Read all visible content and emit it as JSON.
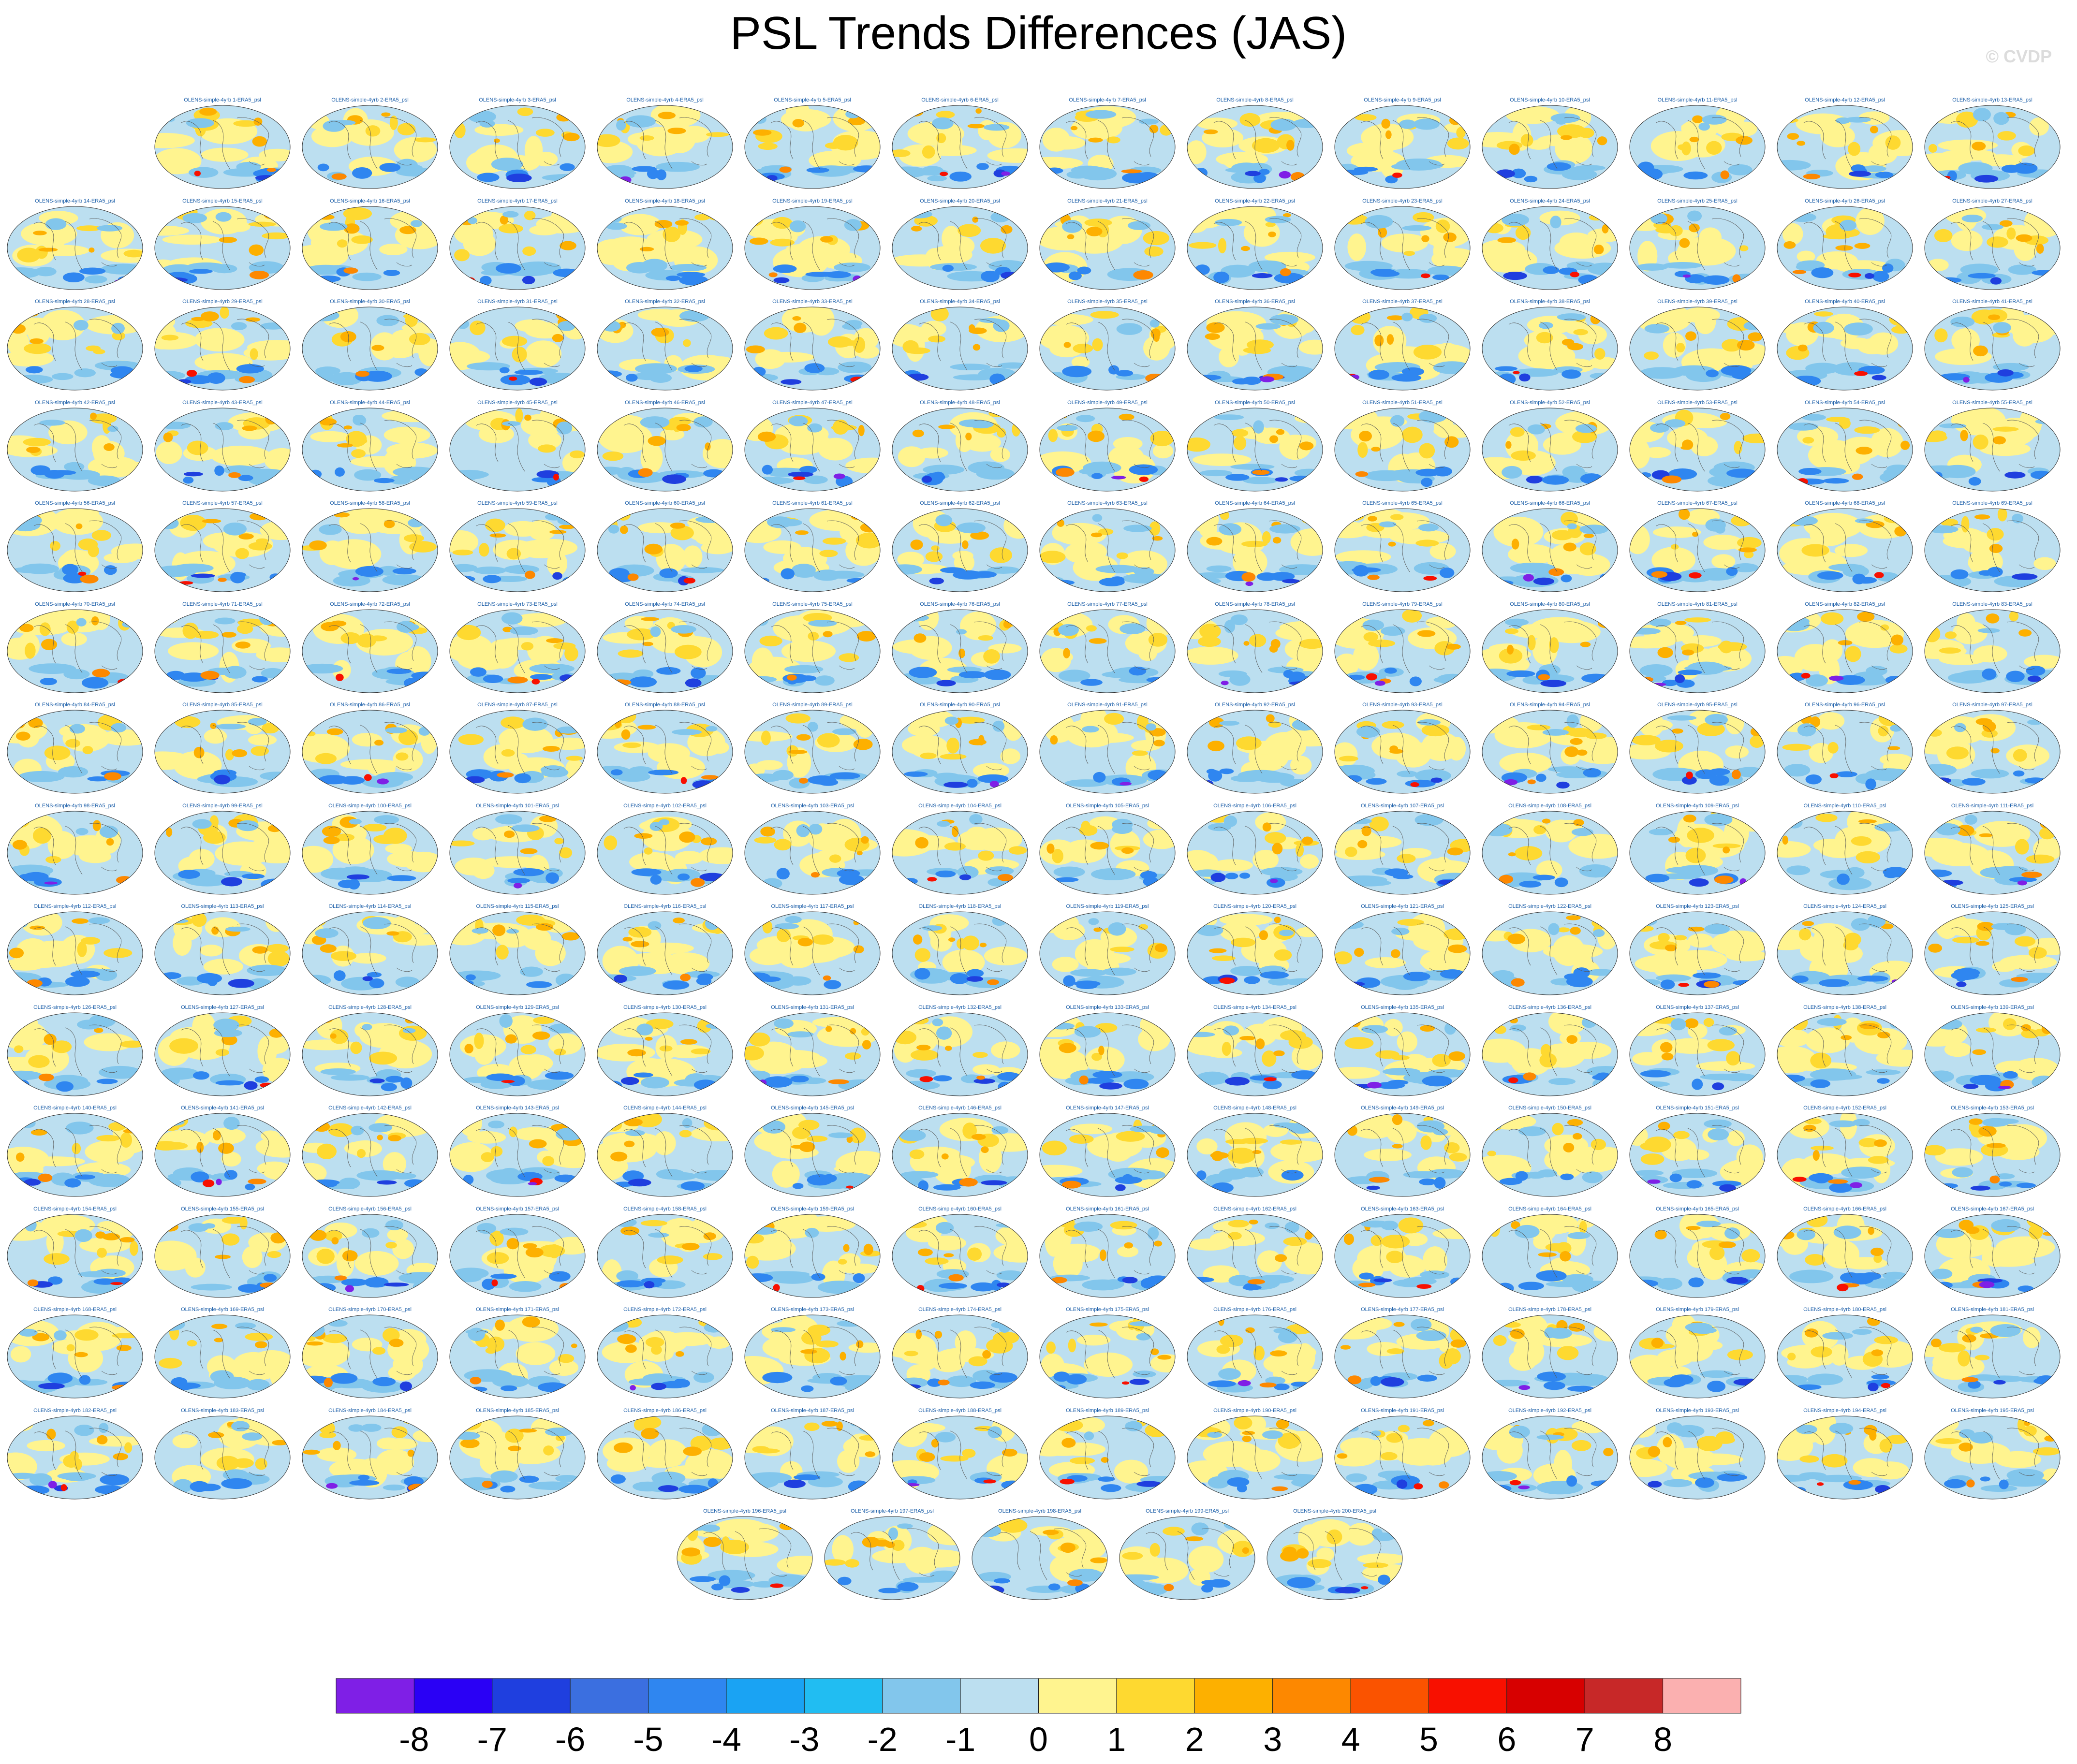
{
  "title": "PSL Trends Differences (JAS)",
  "credit": "© CVDP",
  "chart_data": {
    "type": "heatmap",
    "title": "PSL Trends Differences (JAS)",
    "panel_count": 200,
    "panel_label_template": "OLENS-simple-4yrb {n}-ERA5_psl",
    "panel_labels": [
      "OLENS-simple-4yrb 1-ERA5_psl",
      "OLENS-simple-4yrb 2-ERA5_psl",
      "OLENS-simple-4yrb 3-ERA5_psl",
      "OLENS-simple-4yrb 4-ERA5_psl",
      "OLENS-simple-4yrb 5-ERA5_psl",
      "OLENS-simple-4yrb 6-ERA5_psl",
      "OLENS-simple-4yrb 7-ERA5_psl",
      "OLENS-simple-4yrb 8-ERA5_psl",
      "OLENS-simple-4yrb 9-ERA5_psl",
      "OLENS-simple-4yrb 10-ERA5_psl",
      "OLENS-simple-4yrb 11-ERA5_psl",
      "OLENS-simple-4yrb 12-ERA5_psl",
      "OLENS-simple-4yrb 13-ERA5_psl",
      "OLENS-simple-4yrb 14-ERA5_psl",
      "OLENS-simple-4yrb 15-ERA5_psl",
      "OLENS-simple-4yrb 16-ERA5_psl",
      "OLENS-simple-4yrb 17-ERA5_psl",
      "OLENS-simple-4yrb 18-ERA5_psl",
      "OLENS-simple-4yrb 19-ERA5_psl",
      "OLENS-simple-4yrb 20-ERA5_psl",
      "OLENS-simple-4yrb 21-ERA5_psl",
      "OLENS-simple-4yrb 22-ERA5_psl",
      "OLENS-simple-4yrb 23-ERA5_psl",
      "OLENS-simple-4yrb 24-ERA5_psl",
      "OLENS-simple-4yrb 25-ERA5_psl",
      "OLENS-simple-4yrb 26-ERA5_psl",
      "OLENS-simple-4yrb 27-ERA5_psl",
      "OLENS-simple-4yrb 28-ERA5_psl",
      "OLENS-simple-4yrb 29-ERA5_psl",
      "OLENS-simple-4yrb 30-ERA5_psl",
      "OLENS-simple-4yrb 31-ERA5_psl",
      "OLENS-simple-4yrb 32-ERA5_psl",
      "OLENS-simple-4yrb 33-ERA5_psl",
      "OLENS-simple-4yrb 34-ERA5_psl",
      "OLENS-simple-4yrb 35-ERA5_psl",
      "OLENS-simple-4yrb 36-ERA5_psl",
      "OLENS-simple-4yrb 37-ERA5_psl",
      "OLENS-simple-4yrb 38-ERA5_psl",
      "OLENS-simple-4yrb 39-ERA5_psl",
      "OLENS-simple-4yrb 40-ERA5_psl",
      "OLENS-simple-4yrb 41-ERA5_psl",
      "OLENS-simple-4yrb 42-ERA5_psl",
      "OLENS-simple-4yrb 43-ERA5_psl",
      "OLENS-simple-4yrb 44-ERA5_psl",
      "OLENS-simple-4yrb 45-ERA5_psl",
      "OLENS-simple-4yrb 46-ERA5_psl",
      "OLENS-simple-4yrb 47-ERA5_psl",
      "OLENS-simple-4yrb 48-ERA5_psl",
      "OLENS-simple-4yrb 49-ERA5_psl",
      "OLENS-simple-4yrb 50-ERA5_psl",
      "OLENS-simple-4yrb 51-ERA5_psl",
      "OLENS-simple-4yrb 52-ERA5_psl",
      "OLENS-simple-4yrb 53-ERA5_psl",
      "OLENS-simple-4yrb 54-ERA5_psl",
      "OLENS-simple-4yrb 55-ERA5_psl",
      "OLENS-simple-4yrb 56-ERA5_psl",
      "OLENS-simple-4yrb 57-ERA5_psl",
      "OLENS-simple-4yrb 58-ERA5_psl",
      "OLENS-simple-4yrb 59-ERA5_psl",
      "OLENS-simple-4yrb 60-ERA5_psl",
      "OLENS-simple-4yrb 61-ERA5_psl",
      "OLENS-simple-4yrb 62-ERA5_psl",
      "OLENS-simple-4yrb 63-ERA5_psl",
      "OLENS-simple-4yrb 64-ERA5_psl",
      "OLENS-simple-4yrb 65-ERA5_psl",
      "OLENS-simple-4yrb 66-ERA5_psl",
      "OLENS-simple-4yrb 67-ERA5_psl",
      "OLENS-simple-4yrb 68-ERA5_psl",
      "OLENS-simple-4yrb 69-ERA5_psl",
      "OLENS-simple-4yrb 70-ERA5_psl",
      "OLENS-simple-4yrb 71-ERA5_psl",
      "OLENS-simple-4yrb 72-ERA5_psl",
      "OLENS-simple-4yrb 73-ERA5_psl",
      "OLENS-simple-4yrb 74-ERA5_psl",
      "OLENS-simple-4yrb 75-ERA5_psl",
      "OLENS-simple-4yrb 76-ERA5_psl",
      "OLENS-simple-4yrb 77-ERA5_psl",
      "OLENS-simple-4yrb 78-ERA5_psl",
      "OLENS-simple-4yrb 79-ERA5_psl",
      "OLENS-simple-4yrb 80-ERA5_psl",
      "OLENS-simple-4yrb 81-ERA5_psl",
      "OLENS-simple-4yrb 82-ERA5_psl",
      "OLENS-simple-4yrb 83-ERA5_psl",
      "OLENS-simple-4yrb 84-ERA5_psl",
      "OLENS-simple-4yrb 85-ERA5_psl",
      "OLENS-simple-4yrb 86-ERA5_psl",
      "OLENS-simple-4yrb 87-ERA5_psl",
      "OLENS-simple-4yrb 88-ERA5_psl",
      "OLENS-simple-4yrb 89-ERA5_psl",
      "OLENS-simple-4yrb 90-ERA5_psl",
      "OLENS-simple-4yrb 91-ERA5_psl",
      "OLENS-simple-4yrb 92-ERA5_psl",
      "OLENS-simple-4yrb 93-ERA5_psl",
      "OLENS-simple-4yrb 94-ERA5_psl",
      "OLENS-simple-4yrb 95-ERA5_psl",
      "OLENS-simple-4yrb 96-ERA5_psl",
      "OLENS-simple-4yrb 97-ERA5_psl",
      "OLENS-simple-4yrb 98-ERA5_psl",
      "OLENS-simple-4yrb 99-ERA5_psl",
      "OLENS-simple-4yrb 100-ERA5_psl",
      "OLENS-simple-4yrb 101-ERA5_psl",
      "OLENS-simple-4yrb 102-ERA5_psl",
      "OLENS-simple-4yrb 103-ERA5_psl",
      "OLENS-simple-4yrb 104-ERA5_psl",
      "OLENS-simple-4yrb 105-ERA5_psl",
      "OLENS-simple-4yrb 106-ERA5_psl",
      "OLENS-simple-4yrb 107-ERA5_psl",
      "OLENS-simple-4yrb 108-ERA5_psl",
      "OLENS-simple-4yrb 109-ERA5_psl",
      "OLENS-simple-4yrb 110-ERA5_psl",
      "OLENS-simple-4yrb 111-ERA5_psl",
      "OLENS-simple-4yrb 112-ERA5_psl",
      "OLENS-simple-4yrb 113-ERA5_psl",
      "OLENS-simple-4yrb 114-ERA5_psl",
      "OLENS-simple-4yrb 115-ERA5_psl",
      "OLENS-simple-4yrb 116-ERA5_psl",
      "OLENS-simple-4yrb 117-ERA5_psl",
      "OLENS-simple-4yrb 118-ERA5_psl",
      "OLENS-simple-4yrb 119-ERA5_psl",
      "OLENS-simple-4yrb 120-ERA5_psl",
      "OLENS-simple-4yrb 121-ERA5_psl",
      "OLENS-simple-4yrb 122-ERA5_psl",
      "OLENS-simple-4yrb 123-ERA5_psl",
      "OLENS-simple-4yrb 124-ERA5_psl",
      "OLENS-simple-4yrb 125-ERA5_psl",
      "OLENS-simple-4yrb 126-ERA5_psl",
      "OLENS-simple-4yrb 127-ERA5_psl",
      "OLENS-simple-4yrb 128-ERA5_psl",
      "OLENS-simple-4yrb 129-ERA5_psl",
      "OLENS-simple-4yrb 130-ERA5_psl",
      "OLENS-simple-4yrb 131-ERA5_psl",
      "OLENS-simple-4yrb 132-ERA5_psl",
      "OLENS-simple-4yrb 133-ERA5_psl",
      "OLENS-simple-4yrb 134-ERA5_psl",
      "OLENS-simple-4yrb 135-ERA5_psl",
      "OLENS-simple-4yrb 136-ERA5_psl",
      "OLENS-simple-4yrb 137-ERA5_psl",
      "OLENS-simple-4yrb 138-ERA5_psl",
      "OLENS-simple-4yrb 139-ERA5_psl",
      "OLENS-simple-4yrb 140-ERA5_psl",
      "OLENS-simple-4yrb 141-ERA5_psl",
      "OLENS-simple-4yrb 142-ERA5_psl",
      "OLENS-simple-4yrb 143-ERA5_psl",
      "OLENS-simple-4yrb 144-ERA5_psl",
      "OLENS-simple-4yrb 145-ERA5_psl",
      "OLENS-simple-4yrb 146-ERA5_psl",
      "OLENS-simple-4yrb 147-ERA5_psl",
      "OLENS-simple-4yrb 148-ERA5_psl",
      "OLENS-simple-4yrb 149-ERA5_psl",
      "OLENS-simple-4yrb 150-ERA5_psl",
      "OLENS-simple-4yrb 151-ERA5_psl",
      "OLENS-simple-4yrb 152-ERA5_psl",
      "OLENS-simple-4yrb 153-ERA5_psl",
      "OLENS-simple-4yrb 154-ERA5_psl",
      "OLENS-simple-4yrb 155-ERA5_psl",
      "OLENS-simple-4yrb 156-ERA5_psl",
      "OLENS-simple-4yrb 157-ERA5_psl",
      "OLENS-simple-4yrb 158-ERA5_psl",
      "OLENS-simple-4yrb 159-ERA5_psl",
      "OLENS-simple-4yrb 160-ERA5_psl",
      "OLENS-simple-4yrb 161-ERA5_psl",
      "OLENS-simple-4yrb 162-ERA5_psl",
      "OLENS-simple-4yrb 163-ERA5_psl",
      "OLENS-simple-4yrb 164-ERA5_psl",
      "OLENS-simple-4yrb 165-ERA5_psl",
      "OLENS-simple-4yrb 166-ERA5_psl",
      "OLENS-simple-4yrb 167-ERA5_psl",
      "OLENS-simple-4yrb 168-ERA5_psl",
      "OLENS-simple-4yrb 169-ERA5_psl",
      "OLENS-simple-4yrb 170-ERA5_psl",
      "OLENS-simple-4yrb 171-ERA5_psl",
      "OLENS-simple-4yrb 172-ERA5_psl",
      "OLENS-simple-4yrb 173-ERA5_psl",
      "OLENS-simple-4yrb 174-ERA5_psl",
      "OLENS-simple-4yrb 175-ERA5_psl",
      "OLENS-simple-4yrb 176-ERA5_psl",
      "OLENS-simple-4yrb 177-ERA5_psl",
      "OLENS-simple-4yrb 178-ERA5_psl",
      "OLENS-simple-4yrb 179-ERA5_psl",
      "OLENS-simple-4yrb 180-ERA5_psl",
      "OLENS-simple-4yrb 181-ERA5_psl",
      "OLENS-simple-4yrb 182-ERA5_psl",
      "OLENS-simple-4yrb 183-ERA5_psl",
      "OLENS-simple-4yrb 184-ERA5_psl",
      "OLENS-simple-4yrb 185-ERA5_psl",
      "OLENS-simple-4yrb 186-ERA5_psl",
      "OLENS-simple-4yrb 187-ERA5_psl",
      "OLENS-simple-4yrb 188-ERA5_psl",
      "OLENS-simple-4yrb 189-ERA5_psl",
      "OLENS-simple-4yrb 190-ERA5_psl",
      "OLENS-simple-4yrb 191-ERA5_psl",
      "OLENS-simple-4yrb 192-ERA5_psl",
      "OLENS-simple-4yrb 193-ERA5_psl",
      "OLENS-simple-4yrb 194-ERA5_psl",
      "OLENS-simple-4yrb 195-ERA5_psl",
      "OLENS-simple-4yrb 196-ERA5_psl",
      "OLENS-simple-4yrb 197-ERA5_psl",
      "OLENS-simple-4yrb 198-ERA5_psl",
      "OLENS-simple-4yrb 199-ERA5_psl",
      "OLENS-simple-4yrb 200-ERA5_psl"
    ],
    "colorbar": {
      "tick_labels": [
        "-8",
        "-7",
        "-6",
        "-5",
        "-4",
        "-3",
        "-2",
        "-1",
        "0",
        "1",
        "2",
        "3",
        "4",
        "5",
        "6",
        "7",
        "8"
      ],
      "colors": [
        "#7f1fe6",
        "#2a00f5",
        "#1f3fdf",
        "#3b6fe0",
        "#2f86f0",
        "#1aa3f3",
        "#21bdf2",
        "#82c6ec",
        "#bcdff0",
        "#fff48f",
        "#fed930",
        "#fdb000",
        "#fd8800",
        "#fa5300",
        "#f81000",
        "#d70000",
        "#c72828",
        "#fbb0b0"
      ],
      "levels": [
        -8,
        -7,
        -6,
        -5,
        -4,
        -3,
        -2,
        -1,
        0,
        1,
        2,
        3,
        4,
        5,
        6,
        7,
        8
      ]
    }
  }
}
